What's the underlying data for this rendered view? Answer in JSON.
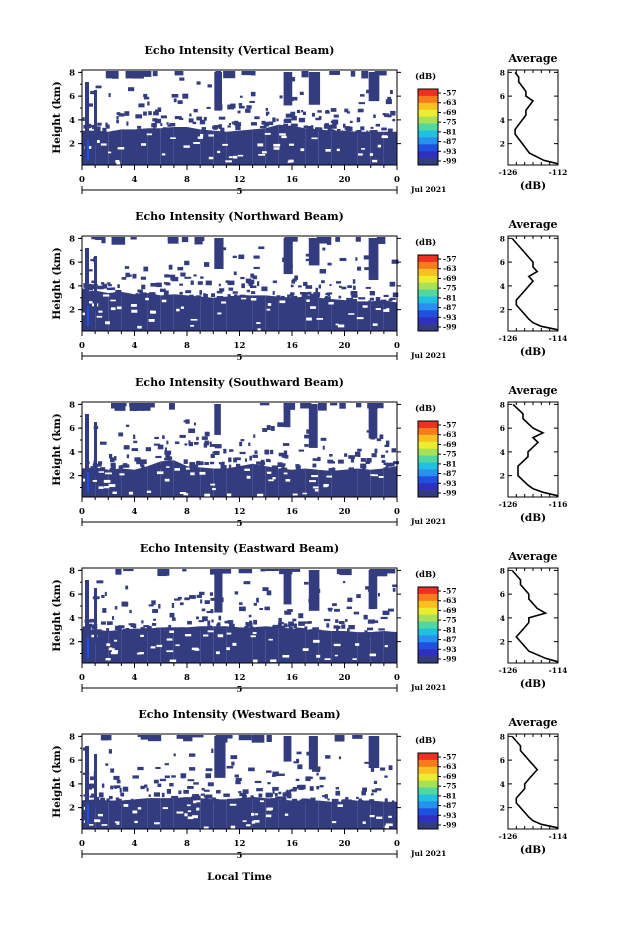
{
  "common": {
    "ylabel": "Height (km)",
    "cbar_unit": "(dB)",
    "cbar_ticks": [
      "-57",
      "-63",
      "-69",
      "-75",
      "-81",
      "-87",
      "-93",
      "-99"
    ],
    "date_label": "Jul 2021",
    "avg_title": "Average",
    "avg_xlabel": "(dB)",
    "day_label": "5",
    "xlabel": "Local Time",
    "colors": [
      "#f03020",
      "#f87c1c",
      "#f8c020",
      "#ecec30",
      "#a8e058",
      "#50d8a0",
      "#20c0e0",
      "#2890f0",
      "#2050e0",
      "#3030c0",
      "#343c80"
    ]
  },
  "chart_data": [
    {
      "type": "heatmap",
      "title": "Echo Intensity (Vertical Beam)",
      "x_ticks": [
        "0",
        "4",
        "8",
        "12",
        "16",
        "20",
        "0"
      ],
      "y_ticks": [
        "2",
        "4",
        "6",
        "8"
      ],
      "xlim": [
        0,
        24
      ],
      "ylim": [
        0.2,
        8.2
      ],
      "colorbar_range_db": [
        -99,
        -57
      ],
      "boundary_height_km": [
        3.1,
        3.1,
        3.0,
        3.2,
        3.2,
        3.3,
        3.3,
        3.4,
        3.4,
        3.2,
        3.1,
        3.0,
        3.1,
        3.2,
        3.3,
        3.6,
        3.5,
        3.3,
        3.2,
        3.1,
        3.1,
        3.0,
        3.0,
        3.0,
        3.0
      ],
      "average": {
        "x_ticks": [
          "-126",
          "-112"
        ],
        "y_ticks": [
          "2",
          "4",
          "6",
          "8"
        ],
        "xlim": [
          -126,
          -112
        ],
        "ylim": [
          0.2,
          8.2
        ],
        "height_km": [
          0.3,
          0.6,
          0.9,
          1.2,
          1.6,
          2.0,
          2.4,
          2.8,
          3.2,
          3.6,
          4.0,
          4.4,
          4.8,
          5.2,
          5.6,
          6.0,
          6.4,
          6.8,
          7.2,
          7.6,
          8.0
        ],
        "db": [
          -112,
          -116,
          -118,
          -120,
          -121,
          -122,
          -123,
          -124,
          -124,
          -123,
          -122,
          -121,
          -121,
          -120,
          -119,
          -121,
          -121,
          -122,
          -123,
          -123,
          -124
        ]
      }
    },
    {
      "type": "heatmap",
      "title": "Echo Intensity (Northward Beam)",
      "x_ticks": [
        "0",
        "4",
        "8",
        "12",
        "16",
        "20",
        "0"
      ],
      "y_ticks": [
        "2",
        "4",
        "6",
        "8"
      ],
      "xlim": [
        0,
        24
      ],
      "ylim": [
        0.2,
        8.2
      ],
      "colorbar_range_db": [
        -99,
        -57
      ],
      "boundary_height_km": [
        3.5,
        3.6,
        3.4,
        3.5,
        3.3,
        3.4,
        3.2,
        3.3,
        3.2,
        3.1,
        3.0,
        3.1,
        3.2,
        3.2,
        3.2,
        3.1,
        3.0,
        3.1,
        3.0,
        2.9,
        2.8,
        2.7,
        2.7,
        2.8,
        2.6
      ],
      "average": {
        "x_ticks": [
          "-126",
          "-114"
        ],
        "y_ticks": [
          "2",
          "4",
          "6",
          "8"
        ],
        "xlim": [
          -126,
          -114
        ],
        "ylim": [
          0.2,
          8.2
        ],
        "height_km": [
          0.3,
          0.6,
          0.9,
          1.2,
          1.6,
          2.0,
          2.4,
          2.8,
          3.2,
          3.6,
          4.0,
          4.4,
          4.8,
          5.2,
          5.6,
          6.0,
          6.4,
          6.8,
          7.2,
          7.6,
          8.0
        ],
        "db": [
          -114,
          -118,
          -120,
          -121,
          -122,
          -123,
          -124,
          -124,
          -123,
          -122,
          -121,
          -120,
          -121,
          -119,
          -120,
          -120,
          -121,
          -122,
          -123,
          -124,
          -125
        ]
      }
    },
    {
      "type": "heatmap",
      "title": "Echo Intensity (Southward Beam)",
      "x_ticks": [
        "0",
        "4",
        "8",
        "12",
        "16",
        "20",
        "0"
      ],
      "y_ticks": [
        "2",
        "4",
        "6",
        "8"
      ],
      "xlim": [
        0,
        24
      ],
      "ylim": [
        0.2,
        8.2
      ],
      "colorbar_range_db": [
        -99,
        -57
      ],
      "boundary_height_km": [
        2.6,
        2.7,
        2.5,
        2.6,
        2.5,
        2.8,
        3.2,
        3.3,
        2.8,
        2.7,
        2.6,
        2.6,
        2.8,
        3.0,
        2.8,
        2.6,
        2.5,
        2.6,
        2.5,
        2.4,
        2.5,
        2.6,
        2.5,
        2.6,
        2.8
      ],
      "average": {
        "x_ticks": [
          "-126",
          "-116"
        ],
        "y_ticks": [
          "2",
          "4",
          "6",
          "8"
        ],
        "xlim": [
          -126,
          -116
        ],
        "ylim": [
          0.2,
          8.2
        ],
        "height_km": [
          0.3,
          0.6,
          0.9,
          1.2,
          1.6,
          2.0,
          2.4,
          2.8,
          3.2,
          3.6,
          4.0,
          4.4,
          4.8,
          5.2,
          5.6,
          6.0,
          6.4,
          6.8,
          7.2,
          7.6,
          8.0
        ],
        "db": [
          -116,
          -119,
          -121,
          -122,
          -123,
          -124,
          -124,
          -124,
          -123,
          -122,
          -122,
          -121,
          -120,
          -121,
          -119,
          -121,
          -122,
          -123,
          -123,
          -124,
          -125
        ]
      }
    },
    {
      "type": "heatmap",
      "title": "Echo Intensity (Eastward Beam)",
      "x_ticks": [
        "0",
        "4",
        "8",
        "12",
        "16",
        "20",
        "0"
      ],
      "y_ticks": [
        "2",
        "4",
        "6",
        "8"
      ],
      "xlim": [
        0,
        24
      ],
      "ylim": [
        0.2,
        8.2
      ],
      "colorbar_range_db": [
        -99,
        -57
      ],
      "boundary_height_km": [
        3.0,
        3.0,
        2.9,
        3.0,
        3.1,
        3.1,
        3.2,
        3.2,
        3.2,
        3.3,
        3.3,
        3.3,
        3.2,
        3.2,
        3.3,
        3.2,
        3.1,
        3.0,
        3.0,
        2.9,
        2.9,
        2.8,
        2.8,
        2.9,
        2.8
      ],
      "average": {
        "x_ticks": [
          "-126",
          "-114"
        ],
        "y_ticks": [
          "2",
          "4",
          "6",
          "8"
        ],
        "xlim": [
          -126,
          -114
        ],
        "ylim": [
          0.2,
          8.2
        ],
        "height_km": [
          0.3,
          0.6,
          0.9,
          1.2,
          1.6,
          2.0,
          2.4,
          2.8,
          3.2,
          3.6,
          4.0,
          4.4,
          4.8,
          5.2,
          5.6,
          6.0,
          6.4,
          6.8,
          7.2,
          7.6,
          8.0
        ],
        "db": [
          -114,
          -117,
          -119,
          -121,
          -122,
          -123,
          -124,
          -123,
          -122,
          -121,
          -121,
          -117,
          -119,
          -120,
          -121,
          -121,
          -122,
          -123,
          -123,
          -124,
          -125
        ]
      }
    },
    {
      "type": "heatmap",
      "title": "Echo Intensity (Westward Beam)",
      "x_ticks": [
        "0",
        "4",
        "8",
        "12",
        "16",
        "20",
        "0"
      ],
      "y_ticks": [
        "2",
        "4",
        "6",
        "8"
      ],
      "xlim": [
        0,
        24
      ],
      "ylim": [
        0.2,
        8.2
      ],
      "colorbar_range_db": [
        -99,
        -57
      ],
      "boundary_height_km": [
        2.6,
        2.7,
        2.6,
        2.6,
        2.7,
        2.8,
        2.8,
        2.8,
        2.9,
        2.8,
        2.7,
        2.7,
        2.8,
        2.9,
        2.8,
        2.7,
        2.6,
        2.6,
        2.6,
        2.5,
        2.5,
        2.6,
        2.6,
        2.5,
        2.5
      ],
      "average": {
        "x_ticks": [
          "-126",
          "-114"
        ],
        "y_ticks": [
          "2",
          "4",
          "6",
          "8"
        ],
        "xlim": [
          -126,
          -114
        ],
        "ylim": [
          0.2,
          8.2
        ],
        "height_km": [
          0.3,
          0.6,
          0.9,
          1.2,
          1.6,
          2.0,
          2.4,
          2.8,
          3.2,
          3.6,
          4.0,
          4.4,
          4.8,
          5.2,
          5.6,
          6.0,
          6.4,
          6.8,
          7.2,
          7.6,
          8.0
        ],
        "db": [
          -114,
          -118,
          -120,
          -121,
          -122,
          -123,
          -124,
          -124,
          -123,
          -122,
          -122,
          -121,
          -120,
          -119,
          -120,
          -121,
          -122,
          -123,
          -123,
          -124,
          -125
        ]
      }
    }
  ]
}
